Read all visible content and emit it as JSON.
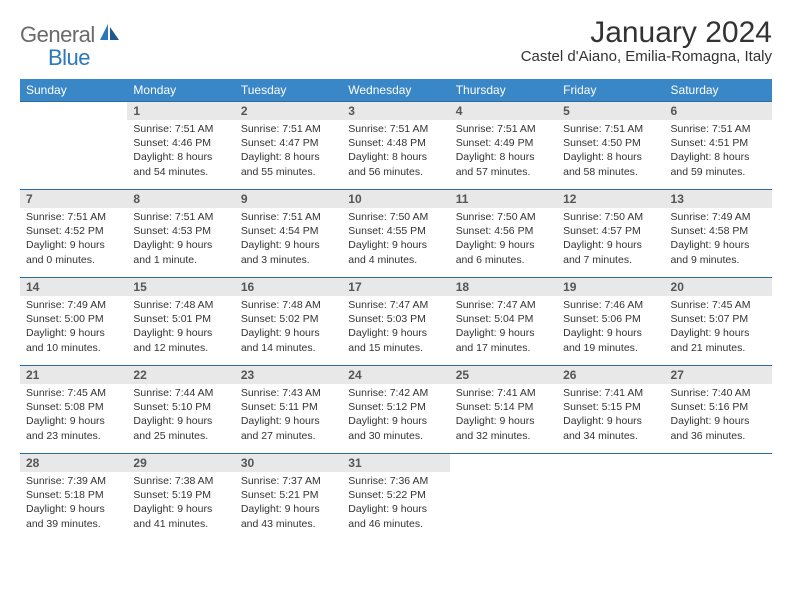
{
  "brand": {
    "word1": "General",
    "word2": "Blue",
    "color_general": "#6a6a6a",
    "color_blue": "#2c78b8",
    "icon_color": "#2c78b8"
  },
  "header": {
    "month_title": "January 2024",
    "location": "Castel d'Aiano, Emilia-Romagna, Italy"
  },
  "style": {
    "header_bg": "#3a87c7",
    "header_fg": "#ffffff",
    "daynum_bg": "#e8e8e8",
    "row_border": "#2c6aa0"
  },
  "day_headers": [
    "Sunday",
    "Monday",
    "Tuesday",
    "Wednesday",
    "Thursday",
    "Friday",
    "Saturday"
  ],
  "weeks": [
    [
      null,
      {
        "n": "1",
        "sunrise": "Sunrise: 7:51 AM",
        "sunset": "Sunset: 4:46 PM",
        "daylight1": "Daylight: 8 hours",
        "daylight2": "and 54 minutes."
      },
      {
        "n": "2",
        "sunrise": "Sunrise: 7:51 AM",
        "sunset": "Sunset: 4:47 PM",
        "daylight1": "Daylight: 8 hours",
        "daylight2": "and 55 minutes."
      },
      {
        "n": "3",
        "sunrise": "Sunrise: 7:51 AM",
        "sunset": "Sunset: 4:48 PM",
        "daylight1": "Daylight: 8 hours",
        "daylight2": "and 56 minutes."
      },
      {
        "n": "4",
        "sunrise": "Sunrise: 7:51 AM",
        "sunset": "Sunset: 4:49 PM",
        "daylight1": "Daylight: 8 hours",
        "daylight2": "and 57 minutes."
      },
      {
        "n": "5",
        "sunrise": "Sunrise: 7:51 AM",
        "sunset": "Sunset: 4:50 PM",
        "daylight1": "Daylight: 8 hours",
        "daylight2": "and 58 minutes."
      },
      {
        "n": "6",
        "sunrise": "Sunrise: 7:51 AM",
        "sunset": "Sunset: 4:51 PM",
        "daylight1": "Daylight: 8 hours",
        "daylight2": "and 59 minutes."
      }
    ],
    [
      {
        "n": "7",
        "sunrise": "Sunrise: 7:51 AM",
        "sunset": "Sunset: 4:52 PM",
        "daylight1": "Daylight: 9 hours",
        "daylight2": "and 0 minutes."
      },
      {
        "n": "8",
        "sunrise": "Sunrise: 7:51 AM",
        "sunset": "Sunset: 4:53 PM",
        "daylight1": "Daylight: 9 hours",
        "daylight2": "and 1 minute."
      },
      {
        "n": "9",
        "sunrise": "Sunrise: 7:51 AM",
        "sunset": "Sunset: 4:54 PM",
        "daylight1": "Daylight: 9 hours",
        "daylight2": "and 3 minutes."
      },
      {
        "n": "10",
        "sunrise": "Sunrise: 7:50 AM",
        "sunset": "Sunset: 4:55 PM",
        "daylight1": "Daylight: 9 hours",
        "daylight2": "and 4 minutes."
      },
      {
        "n": "11",
        "sunrise": "Sunrise: 7:50 AM",
        "sunset": "Sunset: 4:56 PM",
        "daylight1": "Daylight: 9 hours",
        "daylight2": "and 6 minutes."
      },
      {
        "n": "12",
        "sunrise": "Sunrise: 7:50 AM",
        "sunset": "Sunset: 4:57 PM",
        "daylight1": "Daylight: 9 hours",
        "daylight2": "and 7 minutes."
      },
      {
        "n": "13",
        "sunrise": "Sunrise: 7:49 AM",
        "sunset": "Sunset: 4:58 PM",
        "daylight1": "Daylight: 9 hours",
        "daylight2": "and 9 minutes."
      }
    ],
    [
      {
        "n": "14",
        "sunrise": "Sunrise: 7:49 AM",
        "sunset": "Sunset: 5:00 PM",
        "daylight1": "Daylight: 9 hours",
        "daylight2": "and 10 minutes."
      },
      {
        "n": "15",
        "sunrise": "Sunrise: 7:48 AM",
        "sunset": "Sunset: 5:01 PM",
        "daylight1": "Daylight: 9 hours",
        "daylight2": "and 12 minutes."
      },
      {
        "n": "16",
        "sunrise": "Sunrise: 7:48 AM",
        "sunset": "Sunset: 5:02 PM",
        "daylight1": "Daylight: 9 hours",
        "daylight2": "and 14 minutes."
      },
      {
        "n": "17",
        "sunrise": "Sunrise: 7:47 AM",
        "sunset": "Sunset: 5:03 PM",
        "daylight1": "Daylight: 9 hours",
        "daylight2": "and 15 minutes."
      },
      {
        "n": "18",
        "sunrise": "Sunrise: 7:47 AM",
        "sunset": "Sunset: 5:04 PM",
        "daylight1": "Daylight: 9 hours",
        "daylight2": "and 17 minutes."
      },
      {
        "n": "19",
        "sunrise": "Sunrise: 7:46 AM",
        "sunset": "Sunset: 5:06 PM",
        "daylight1": "Daylight: 9 hours",
        "daylight2": "and 19 minutes."
      },
      {
        "n": "20",
        "sunrise": "Sunrise: 7:45 AM",
        "sunset": "Sunset: 5:07 PM",
        "daylight1": "Daylight: 9 hours",
        "daylight2": "and 21 minutes."
      }
    ],
    [
      {
        "n": "21",
        "sunrise": "Sunrise: 7:45 AM",
        "sunset": "Sunset: 5:08 PM",
        "daylight1": "Daylight: 9 hours",
        "daylight2": "and 23 minutes."
      },
      {
        "n": "22",
        "sunrise": "Sunrise: 7:44 AM",
        "sunset": "Sunset: 5:10 PM",
        "daylight1": "Daylight: 9 hours",
        "daylight2": "and 25 minutes."
      },
      {
        "n": "23",
        "sunrise": "Sunrise: 7:43 AM",
        "sunset": "Sunset: 5:11 PM",
        "daylight1": "Daylight: 9 hours",
        "daylight2": "and 27 minutes."
      },
      {
        "n": "24",
        "sunrise": "Sunrise: 7:42 AM",
        "sunset": "Sunset: 5:12 PM",
        "daylight1": "Daylight: 9 hours",
        "daylight2": "and 30 minutes."
      },
      {
        "n": "25",
        "sunrise": "Sunrise: 7:41 AM",
        "sunset": "Sunset: 5:14 PM",
        "daylight1": "Daylight: 9 hours",
        "daylight2": "and 32 minutes."
      },
      {
        "n": "26",
        "sunrise": "Sunrise: 7:41 AM",
        "sunset": "Sunset: 5:15 PM",
        "daylight1": "Daylight: 9 hours",
        "daylight2": "and 34 minutes."
      },
      {
        "n": "27",
        "sunrise": "Sunrise: 7:40 AM",
        "sunset": "Sunset: 5:16 PM",
        "daylight1": "Daylight: 9 hours",
        "daylight2": "and 36 minutes."
      }
    ],
    [
      {
        "n": "28",
        "sunrise": "Sunrise: 7:39 AM",
        "sunset": "Sunset: 5:18 PM",
        "daylight1": "Daylight: 9 hours",
        "daylight2": "and 39 minutes."
      },
      {
        "n": "29",
        "sunrise": "Sunrise: 7:38 AM",
        "sunset": "Sunset: 5:19 PM",
        "daylight1": "Daylight: 9 hours",
        "daylight2": "and 41 minutes."
      },
      {
        "n": "30",
        "sunrise": "Sunrise: 7:37 AM",
        "sunset": "Sunset: 5:21 PM",
        "daylight1": "Daylight: 9 hours",
        "daylight2": "and 43 minutes."
      },
      {
        "n": "31",
        "sunrise": "Sunrise: 7:36 AM",
        "sunset": "Sunset: 5:22 PM",
        "daylight1": "Daylight: 9 hours",
        "daylight2": "and 46 minutes."
      },
      null,
      null,
      null
    ]
  ]
}
